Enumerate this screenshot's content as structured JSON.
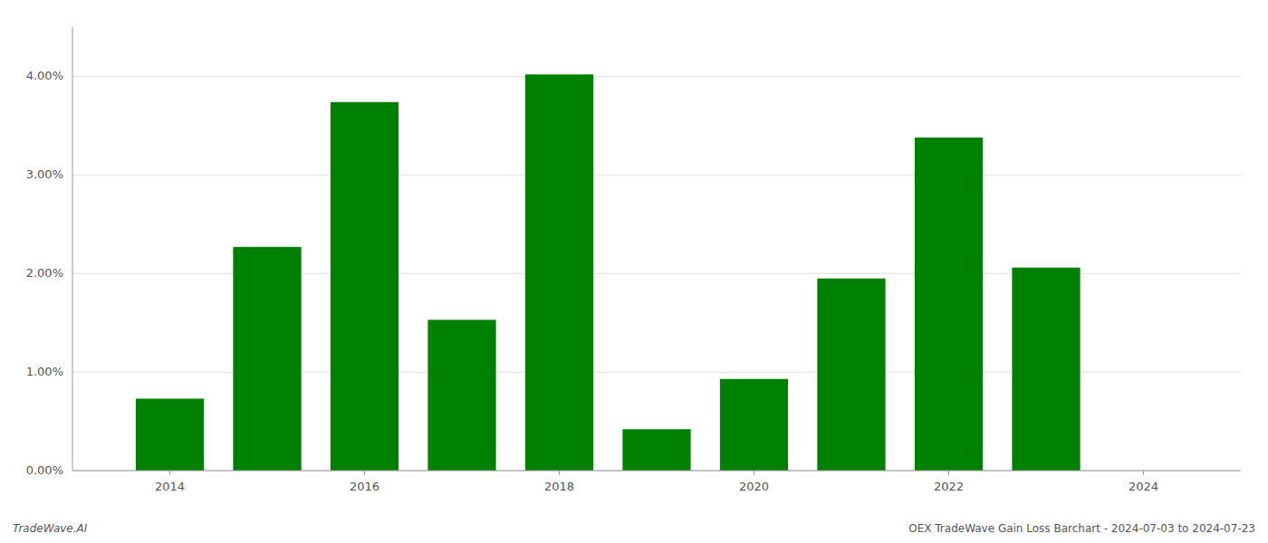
{
  "chart_data": {
    "type": "bar",
    "x": [
      2014,
      2015,
      2016,
      2017,
      2018,
      2019,
      2020,
      2021,
      2022,
      2023,
      2024
    ],
    "values": [
      0.0073,
      0.0227,
      0.0374,
      0.0153,
      0.0402,
      0.0042,
      0.0093,
      0.0195,
      0.0338,
      0.0206,
      0.0
    ],
    "color": "#008000",
    "xlim": [
      2013.0,
      2025.0
    ],
    "xticks": [
      2014,
      2016,
      2018,
      2020,
      2022,
      2024
    ],
    "ylim": [
      0,
      0.045
    ],
    "yticks": [
      {
        "value": 0,
        "label": "0.00%"
      },
      {
        "value": 0.01,
        "label": "1.00%"
      },
      {
        "value": 0.02,
        "label": "2.00%"
      },
      {
        "value": 0.03,
        "label": "3.00%"
      },
      {
        "value": 0.04,
        "label": "4.00%"
      }
    ],
    "grid": true,
    "annotations": [
      "TradeWave.AI",
      "OEX TradeWave Gain Loss Barchart - 2024-07-03 to 2024-07-23"
    ]
  }
}
